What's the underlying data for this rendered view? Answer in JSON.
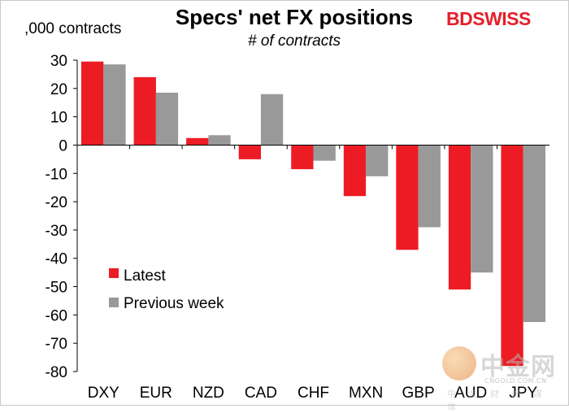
{
  "chart_data": {
    "type": "bar",
    "title": "Specs' net FX positions",
    "subtitle": "# of contracts",
    "ylabel": ",000 contracts",
    "xlabel": "",
    "ylim": [
      -80,
      30
    ],
    "yticks": [
      30,
      20,
      10,
      0,
      -10,
      -20,
      -30,
      -40,
      -50,
      -60,
      -70,
      -80
    ],
    "grid": false,
    "legend_position": "bottom-left",
    "categories": [
      "DXY",
      "EUR",
      "NZD",
      "CAD",
      "CHF",
      "MXN",
      "GBP",
      "AUD",
      "JPY"
    ],
    "series": [
      {
        "name": "Latest",
        "color": "#ed1c24",
        "values": [
          29.5,
          24.0,
          2.5,
          -5.0,
          -8.5,
          -18.0,
          -37.0,
          -51.0,
          -78.0
        ]
      },
      {
        "name": "Previous week",
        "color": "#999999",
        "values": [
          28.5,
          18.5,
          3.5,
          18.0,
          -5.5,
          -11.0,
          -29.0,
          -45.0,
          -62.5
        ]
      }
    ]
  },
  "logo": {
    "bd": "BD",
    "swiss": "SWISS",
    "brand_color": "#e3202b"
  },
  "watermark": {
    "cn": "中金网",
    "url": "CNGOLD.COM.CN",
    "sub": "中 金 财 经 媒 体"
  }
}
